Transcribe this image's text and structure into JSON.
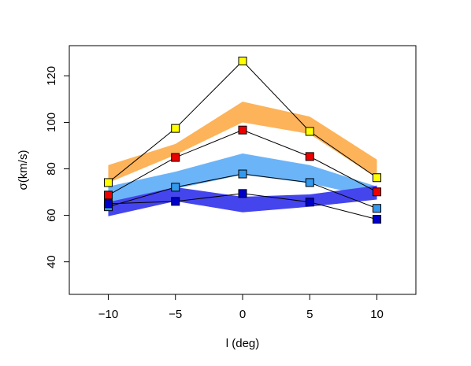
{
  "chart_data": {
    "type": "line",
    "x_label": "l (deg)",
    "y_label": "σ(km/s)",
    "x": [
      -10,
      -5,
      0,
      5,
      10
    ],
    "xlim": [
      -12.9,
      12.9
    ],
    "xticks": [
      {
        "value": -10,
        "label": "−10"
      },
      {
        "value": -5,
        "label": "−5"
      },
      0,
      5,
      10
    ],
    "ylim": [
      26,
      133
    ],
    "yticks": [
      40,
      60,
      80,
      100,
      120
    ],
    "bands": [
      {
        "color": "#fdb35a",
        "upper": [
          81.6,
          90.7,
          108.9,
          102.5,
          84.0
        ],
        "lower": [
          74.0,
          86.0,
          100.0,
          95.0,
          76.0
        ]
      },
      {
        "color": "#6cb4f8",
        "upper": [
          72.4,
          78.8,
          86.6,
          81.6,
          72.4
        ],
        "lower": [
          65.4,
          71.4,
          77.5,
          73.8,
          67.4
        ]
      },
      {
        "color": "#4545ee",
        "upper": [
          65.7,
          72.1,
          68.0,
          69.0,
          72.8
        ],
        "lower": [
          59.6,
          66.1,
          61.3,
          63.7,
          66.8
        ]
      }
    ],
    "series": [
      {
        "color": "#ffff00",
        "values": [
          74.1,
          97.4,
          126.4,
          96.1,
          76.2
        ]
      },
      {
        "color": "#ee0000",
        "values": [
          68.7,
          84.9,
          96.7,
          85.3,
          70.1
        ]
      },
      {
        "color": "#3399ee",
        "values": [
          63.7,
          72.1,
          77.8,
          74.1,
          63.0
        ]
      },
      {
        "color": "#0000cc",
        "values": [
          65.0,
          66.0,
          69.4,
          65.7,
          58.3
        ]
      }
    ]
  }
}
